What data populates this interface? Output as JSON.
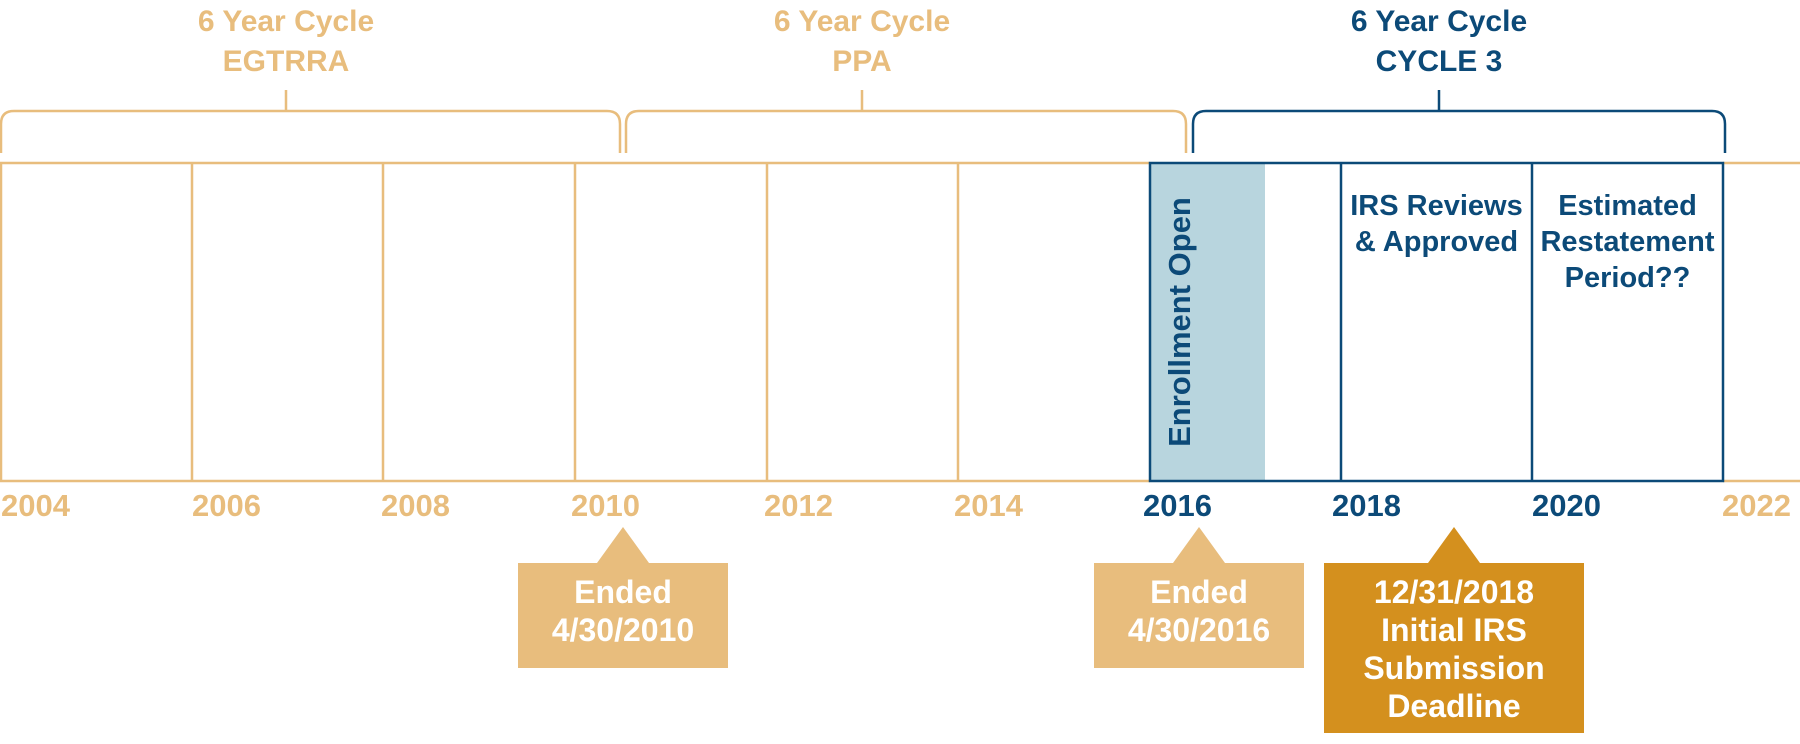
{
  "colors": {
    "gold_light": "#e8bd7d",
    "blue_dark": "#0c4a78",
    "blue_fill": "#b8d5de",
    "orange": "#d4901e",
    "callout_light": "#e8bd7d"
  },
  "cycles": [
    {
      "line1": "6 Year Cycle",
      "line2": "EGTRRA",
      "tone": "light"
    },
    {
      "line1": "6 Year Cycle",
      "line2": "PPA",
      "tone": "light"
    },
    {
      "line1": "6 Year Cycle",
      "line2": "CYCLE 3",
      "tone": "dark"
    }
  ],
  "years": [
    "2004",
    "2006",
    "2008",
    "2010",
    "2012",
    "2014",
    "2016",
    "2018",
    "2020",
    "2022"
  ],
  "phases": {
    "enrollment": "Enrollment Open",
    "irs_reviews": [
      "IRS Reviews",
      "& Approved"
    ],
    "restatement": [
      "Estimated",
      "Restatement",
      "Period??"
    ]
  },
  "callouts": [
    {
      "lines": [
        "Ended",
        "4/30/2010"
      ]
    },
    {
      "lines": [
        "Ended",
        "4/30/2016"
      ]
    },
    {
      "lines": [
        "12/31/2018",
        "Initial IRS",
        "Submission",
        "Deadline"
      ]
    }
  ]
}
